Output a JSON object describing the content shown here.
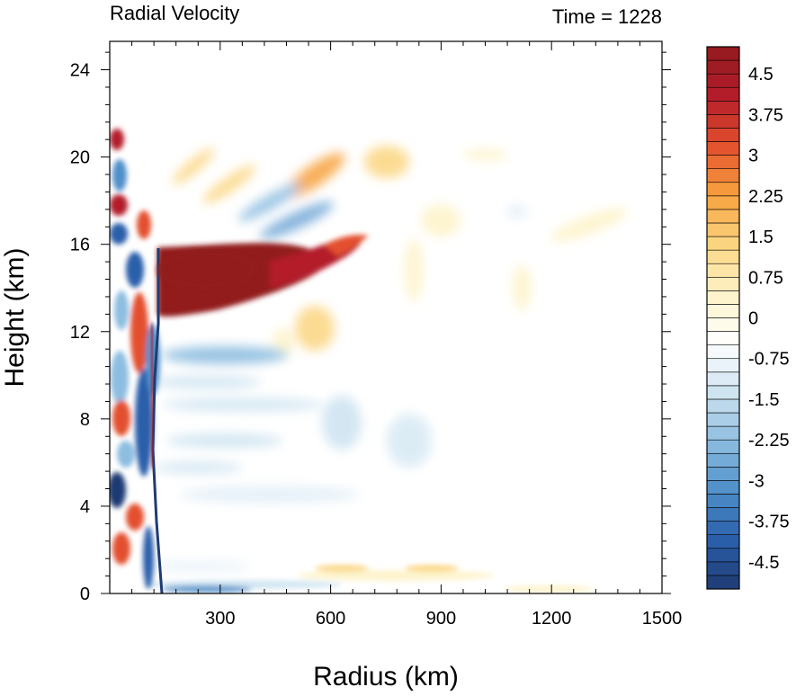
{
  "chart_data": {
    "type": "heatmap",
    "title_left": "Radial Velocity",
    "title_right": "Time = 1228",
    "xlabel": "Radius (km)",
    "ylabel": "Height (km)",
    "xlim": [
      0,
      1500
    ],
    "ylim": [
      0,
      25.3
    ],
    "x_ticks": [
      "300",
      "600",
      "900",
      "1200",
      "1500"
    ],
    "x_tick_values": [
      300,
      600,
      900,
      1200,
      1500
    ],
    "y_ticks": [
      "0",
      "4",
      "8",
      "12",
      "16",
      "20",
      "24"
    ],
    "y_tick_values": [
      0,
      4,
      8,
      12,
      16,
      20,
      24
    ],
    "colorbar": {
      "levels": [
        -5,
        5
      ],
      "step": 0.25,
      "labels": [
        "4.5",
        "3.75",
        "3",
        "2.25",
        "1.5",
        "0.75",
        "0",
        "-0.75",
        "-1.5",
        "-2.25",
        "-3",
        "-3.75",
        "-4.5"
      ],
      "label_values": [
        4.5,
        3.75,
        3,
        2.25,
        1.5,
        0.75,
        0,
        -0.75,
        -1.5,
        -2.25,
        -3,
        -3.75,
        -4.5
      ],
      "colors_low_to_high": [
        "#1f3b73",
        "#2b5faa",
        "#4f8fc9",
        "#8dbde0",
        "#cfe4f1",
        "#ffffff",
        "#fdf3c8",
        "#fbd580",
        "#f7a23e",
        "#e3502e",
        "#b41d2a",
        "#921b1f"
      ]
    },
    "features": [
      {
        "name": "upper-level outflow jet",
        "radius_km": [
          130,
          620
        ],
        "height_km": [
          12.8,
          16.2
        ],
        "value": 5
      },
      {
        "name": "eyewall updraft boundary",
        "radius_km": [
          130,
          160
        ],
        "height_km": [
          0,
          15.8
        ],
        "value": -3
      }
    ]
  }
}
